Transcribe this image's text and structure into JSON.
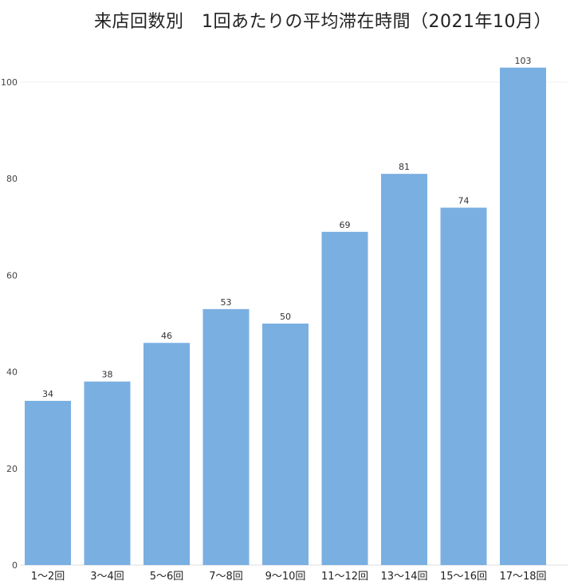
{
  "chart_data": {
    "type": "bar",
    "title": "来店回数別　1回あたりの平均滞在時間（2021年10月）",
    "xlabel": "",
    "ylabel": "",
    "categories": [
      "1〜2回",
      "3〜4回",
      "5〜6回",
      "7〜8回",
      "9〜10回",
      "11〜12回",
      "13〜14回",
      "15〜16回",
      "17〜18回"
    ],
    "values": [
      34,
      38,
      46,
      53,
      50,
      69,
      81,
      74,
      103
    ],
    "data_labels": [
      "34",
      "38",
      "46",
      "53",
      "50",
      "69",
      "81",
      "74",
      "103"
    ],
    "ylim": [
      0,
      110
    ],
    "yticks": [
      0,
      20,
      40,
      60,
      80,
      100
    ],
    "ytick_labels": [
      "0",
      "20",
      "40",
      "60",
      "80",
      "100"
    ],
    "grid": false,
    "legend": "none",
    "bar_color": "#7aafe2"
  }
}
